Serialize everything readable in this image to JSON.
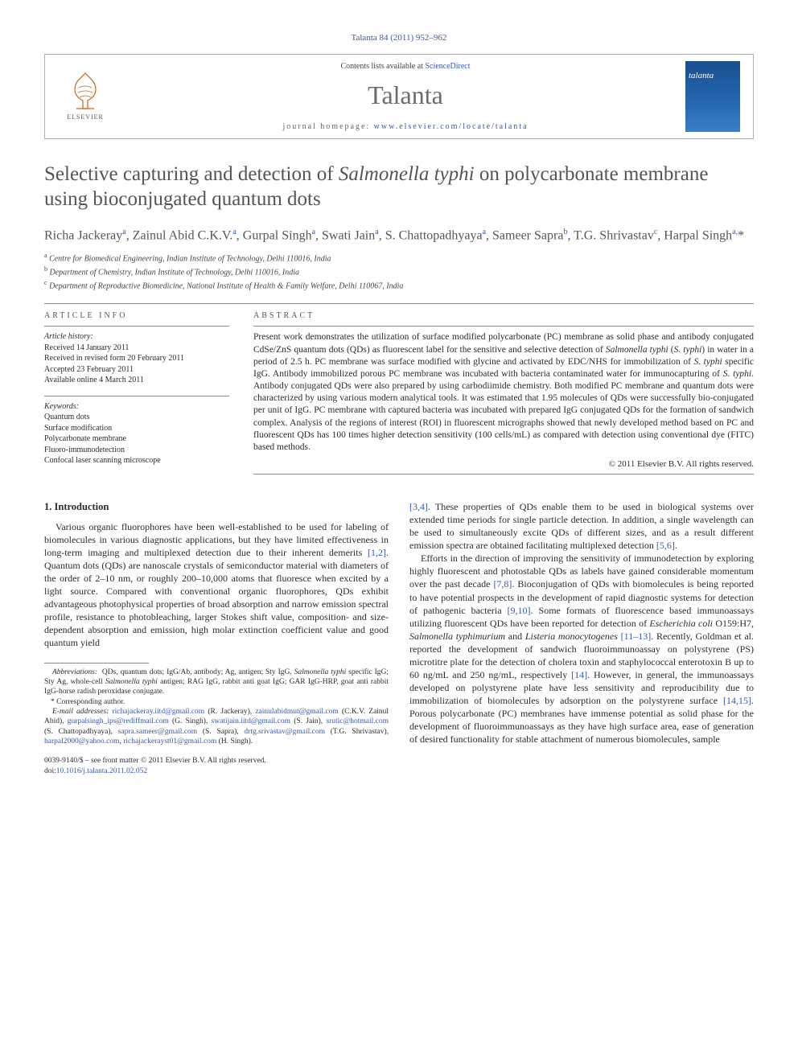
{
  "header": {
    "citation": "Talanta 84 (2011) 952–962",
    "contents_prefix": "Contents lists available at ",
    "contents_link": "ScienceDirect",
    "journal": "Talanta",
    "homepage_prefix": "journal homepage: ",
    "homepage_url": "www.elsevier.com/locate/talanta",
    "elsevier": "ELSEVIER",
    "cover_label": "talanta"
  },
  "title_html": "Selective capturing and detection of <em>Salmonella typhi</em> on polycarbonate membrane using bioconjugated quantum dots",
  "authors_html": "Richa Jackeray<sup>a</sup>, Zainul Abid C.K.V.<sup>a</sup>, Gurpal Singh<sup>a</sup>, Swati Jain<sup>a</sup>, S. Chattopadhyaya<sup>a</sup>, Sameer Sapra<sup>b</sup>, T.G. Shrivastav<sup>c</sup>, Harpal Singh<sup>a,</sup>*",
  "affiliations": [
    {
      "sup": "a",
      "text": "Centre for Biomedical Engineering, Indian Institute of Technology, Delhi 110016, India"
    },
    {
      "sup": "b",
      "text": "Department of Chemistry, Indian Institute of Technology, Delhi 110016, India"
    },
    {
      "sup": "c",
      "text": "Department of Reproductive Biomedicine, National Institute of Health & Family Welfare, Delhi 110067, India"
    }
  ],
  "info_label": "ARTICLE INFO",
  "abstract_label": "ABSTRACT",
  "history": {
    "label": "Article history:",
    "received": "Received 14 January 2011",
    "revised": "Received in revised form 20 February 2011",
    "accepted": "Accepted 23 February 2011",
    "online": "Available online 4 March 2011"
  },
  "keywords": {
    "label": "Keywords:",
    "items": [
      "Quantum dots",
      "Surface modification",
      "Polycarbonate membrane",
      "Fluoro-immunodetection",
      "Confocal laser scanning microscope"
    ]
  },
  "abstract_html": "Present work demonstrates the utilization of surface modified polycarbonate (PC) membrane as solid phase and antibody conjugated CdSe/ZnS quantum dots (QDs) as fluorescent label for the sensitive and selective detection of <em>Salmonella typhi</em> (<em>S. typhi</em>) in water in a period of 2.5 h. PC membrane was surface modified with glycine and activated by EDC/NHS for immobilization of <em>S. typhi</em> specific IgG. Antibody immobilized porous PC membrane was incubated with bacteria contaminated water for immunocapturing of <em>S. typhi</em>. Antibody conjugated QDs were also prepared by using carbodiimide chemistry. Both modified PC membrane and quantum dots were characterized by using various modern analytical tools. It was estimated that 1.95 molecules of QDs were successfully bio-conjugated per unit of IgG. PC membrane with captured bacteria was incubated with prepared IgG conjugated QDs for the formation of sandwich complex. Analysis of the regions of interest (ROI) in fluorescent micrographs showed that newly developed method based on PC and fluorescent QDs has 100 times higher detection sensitivity (100 cells/mL) as compared with detection using conventional dye (FITC) based methods.",
  "copyright": "© 2011 Elsevier B.V. All rights reserved.",
  "intro_head": "1. Introduction",
  "col1_p1_html": "Various organic fluorophores have been well-established to be used for labeling of biomolecules in various diagnostic applications, but they have limited effectiveness in long-term imaging and multiplexed detection due to their inherent demerits <span class=\"ref\">[1,2]</span>. Quantum dots (QDs) are nanoscale crystals of semiconductor material with diameters of the order of 2–10 nm, or roughly 200–10,000 atoms that fluoresce when excited by a light source. Compared with conventional organic fluorophores, QDs exhibit advantageous photophysical properties of broad absorption and narrow emission spectral profile, resistance to photobleaching, larger Stokes shift value, composition- and size-dependent absorption and emission, high molar extinction coefficient value and good quantum yield",
  "col2_p1_html": "<span class=\"ref\">[3,4]</span>. These properties of QDs enable them to be used in biological systems over extended time periods for single particle detection. In addition, a single wavelength can be used to simultaneously excite QDs of different sizes, and as a result different emission spectra are obtained facilitating multiplexed detection <span class=\"ref\">[5,6]</span>.",
  "col2_p2_html": "Efforts in the direction of improving the sensitivity of immunodetection by exploring highly fluorescent and photostable QDs as labels have gained considerable momentum over the past decade <span class=\"ref\">[7,8]</span>. Bioconjugation of QDs with biomolecules is being reported to have potential prospects in the development of rapid diagnostic systems for detection of pathogenic bacteria <span class=\"ref\">[9,10]</span>. Some formats of fluorescence based immunoassays utilizing fluorescent QDs have been reported for detection of <em class=\"sp\">Escherichia coli</em> O159:H7, <em class=\"sp\">Salmonella typhimurium</em> and <em class=\"sp\">Listeria monocytogenes</em> <span class=\"ref\">[11–13]</span>. Recently, Goldman et al. reported the development of sandwich fluoroimmunoassay on polystyrene (PS) microtitre plate for the detection of cholera toxin and staphylococcal enterotoxin B up to 60 ng/mL and 250 ng/mL, respectively <span class=\"ref\">[14]</span>. However, in general, the immunoassays developed on polystyrene plate have less sensitivity and reproducibility due to immobilization of biomolecules by adsorption on the polystyrene surface <span class=\"ref\">[14,15]</span>. Porous polycarbonate (PC) membranes have immense potential as solid phase for the development of fluoroimmunoassays as they have high surface area, ease of generation of desired functionality for stable attachment of numerous biomolecules, sample",
  "footnotes": {
    "abbrev_html": "<span class=\"it\">Abbreviations:</span> &nbsp;QDs, quantum dots; IgG/Ab, antibody; Ag, antigen; Sty IgG, <em>Salmonella typhi</em> specific IgG; Sty Ag, whole-cell <em>Salmonella typhi</em> antigen; RAG IgG, rabbit anti goat IgG; GAR IgG-HRP, goat anti rabbit IgG-horse radish peroxidase conjugate.",
    "corr": "* Corresponding author.",
    "emails_label": "E-mail addresses:",
    "emails": [
      {
        "addr": "richajackeray.iitd@gmail.com",
        "who": "(R. Jackeray)"
      },
      {
        "addr": "zainulabidmut@gmail.com",
        "who": "(C.K.V. Zainul Abid)"
      },
      {
        "addr": "gurpalsingh_ips@rediffmail.com",
        "who": "(G. Singh)"
      },
      {
        "addr": "swatijain.iitd@gmail.com",
        "who": "(S. Jain)"
      },
      {
        "addr": "srutic@hotmail.com",
        "who": "(S. Chattopadhyaya)"
      },
      {
        "addr": "sapra.sameer@gmail.com",
        "who": "(S. Sapra)"
      },
      {
        "addr": "drtg.srivastav@gmail.com",
        "who": "(T.G. Shrivastav)"
      },
      {
        "addr": "harpal2000@yahoo.com",
        "who": ""
      },
      {
        "addr": "richajackerayst01@gmail.com",
        "who": "(H. Singh)"
      }
    ]
  },
  "bottom": {
    "issn": "0039-9140/$ – see front matter © 2011 Elsevier B.V. All rights reserved.",
    "doi_prefix": "doi:",
    "doi": "10.1016/j.talanta.2011.02.052"
  },
  "colors": {
    "link": "#3858a8",
    "title_gray": "#555555",
    "rule": "#888888",
    "cover_bg": "#1a4f8f"
  }
}
